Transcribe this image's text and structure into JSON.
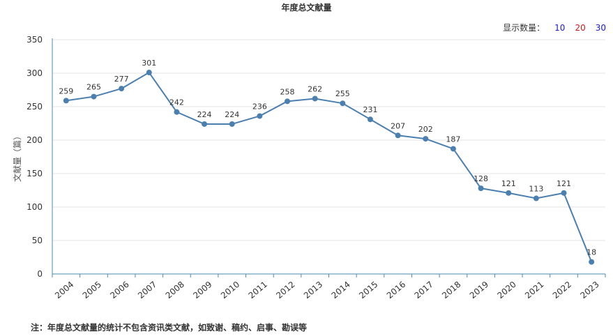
{
  "title": "年度总文献量",
  "selector": {
    "label": "显示数量：",
    "options": [
      {
        "value": "10",
        "color": "#1a1acc"
      },
      {
        "value": "20",
        "color": "#d01818"
      },
      {
        "value": "30",
        "color": "#1a1acc"
      }
    ]
  },
  "footnote": "注：年度总文献量的统计不包含资讯类文献，如致谢、稿约、启事、勘误等",
  "colors": {
    "line": "#4a7fb0",
    "grid": "#e3e3e3",
    "axis": "#4a8ab0"
  },
  "chart_data": {
    "type": "line",
    "title": "年度总文献量",
    "ylabel": "文献量（篇）",
    "xlabel": "",
    "categories": [
      "2004",
      "2005",
      "2006",
      "2007",
      "2008",
      "2009",
      "2010",
      "2011",
      "2012",
      "2013",
      "2014",
      "2015",
      "2016",
      "2017",
      "2018",
      "2019",
      "2020",
      "2021",
      "2022",
      "2023"
    ],
    "values": [
      259,
      265,
      277,
      301,
      242,
      224,
      224,
      236,
      258,
      262,
      255,
      231,
      207,
      202,
      187,
      128,
      121,
      113,
      121,
      18
    ],
    "ylim": [
      0,
      350
    ],
    "yticks": [
      0,
      50,
      100,
      150,
      200,
      250,
      300,
      350
    ],
    "grid": true,
    "data_labels": true
  }
}
